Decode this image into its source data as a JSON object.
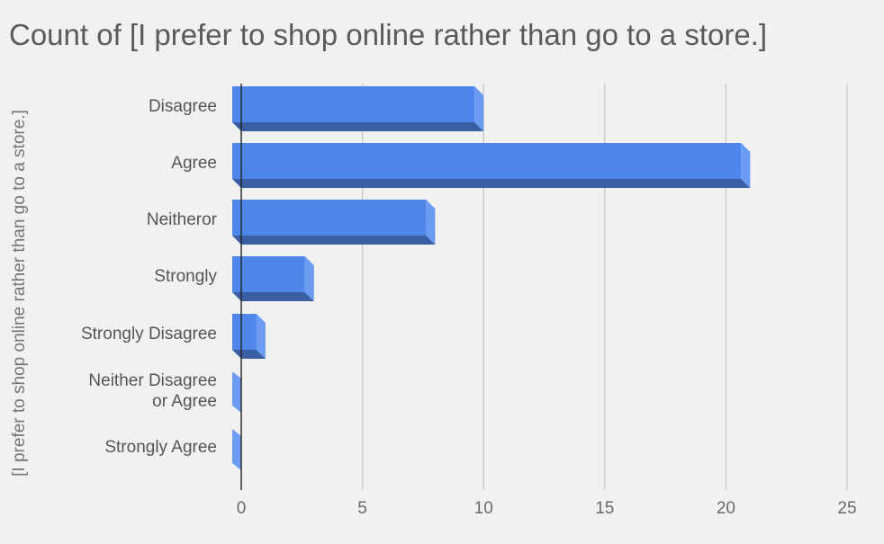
{
  "chart_data": {
    "type": "bar",
    "orientation": "horizontal",
    "title": "Count of  [I prefer to shop online rather than go to a store.]",
    "xlabel": "",
    "ylabel": "[I prefer to shop online rather than go to a store.]",
    "categories": [
      "Disagree",
      "Agree",
      "Neitheror",
      "Strongly",
      "Strongly Disagree",
      "Neither Disagree or Agree",
      "Strongly Agree"
    ],
    "values": [
      10,
      21,
      8,
      3,
      1,
      0,
      0
    ],
    "xlim": [
      0,
      25
    ],
    "xticks": [
      0,
      5,
      10,
      15,
      20,
      25
    ],
    "grid": true,
    "legend": "none",
    "style": "3d",
    "colors": {
      "bar_face": "#4f86ec",
      "bar_bottom": "#3a5fa3",
      "bar_side": "#6c9bf2",
      "grid": "#c8c8c8",
      "axis": "#222222",
      "background": "#f1f1f1"
    }
  }
}
